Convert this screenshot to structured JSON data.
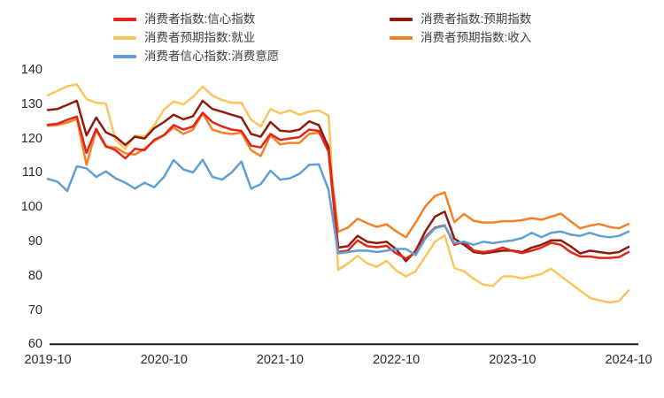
{
  "chart_data": {
    "type": "line",
    "title": "",
    "start_month": "2019-10",
    "end_month": "2024-10",
    "x_tick_labels": [
      "2019-10",
      "2020-10",
      "2021-10",
      "2022-10",
      "2023-10",
      "2024-10"
    ],
    "months_per_x_tick": 12,
    "y_ticks": [
      140,
      130,
      120,
      110,
      100,
      90,
      80,
      70,
      60
    ],
    "ylim": [
      60,
      140
    ],
    "grid": false,
    "legend_position": "top",
    "axis_color": "#1a1a1a",
    "series": [
      {
        "name": "消费者指数:信心指数",
        "color": "#e2261a",
        "values": [
          124.0,
          124.3,
          125.4,
          126.4,
          115.8,
          122.8,
          117.8,
          116.6,
          114.2,
          117.0,
          116.6,
          119.6,
          121.0,
          123.9,
          122.6,
          123.5,
          127.5,
          124.8,
          123.5,
          122.6,
          122.2,
          117.9,
          117.4,
          121.3,
          119.6,
          120.0,
          120.4,
          122.6,
          122.2,
          116.1,
          86.9,
          87.3,
          90.3,
          88.6,
          88.3,
          88.7,
          86.5,
          85.0,
          86.8,
          91.2,
          94.0,
          94.7,
          89.0,
          89.9,
          87.3,
          86.9,
          87.3,
          88.2,
          87.2,
          86.6,
          87.3,
          88.2,
          89.6,
          89.0,
          86.9,
          85.6,
          85.6,
          85.2,
          85.2,
          85.4,
          86.9
        ]
      },
      {
        "name": "消费者指数:预期指数",
        "color": "#8e1c0d",
        "values": [
          128.3,
          128.6,
          129.8,
          131.0,
          120.9,
          126.1,
          121.8,
          120.5,
          118.1,
          120.5,
          120.0,
          123.0,
          124.8,
          126.9,
          125.6,
          126.5,
          131.0,
          128.6,
          127.8,
          126.9,
          126.1,
          121.3,
          120.5,
          124.8,
          122.3,
          122.0,
          122.6,
          125.0,
          123.9,
          117.4,
          88.2,
          88.6,
          91.6,
          89.9,
          89.5,
          89.9,
          87.7,
          84.2,
          87.3,
          92.9,
          97.2,
          98.7,
          90.8,
          89.0,
          86.9,
          86.5,
          86.9,
          87.3,
          87.3,
          86.9,
          88.2,
          89.0,
          90.3,
          90.3,
          88.6,
          86.5,
          87.3,
          86.9,
          86.5,
          86.9,
          88.4
        ]
      },
      {
        "name": "消费者预期指数:就业",
        "color": "#fcc45c",
        "values": [
          132.6,
          133.9,
          135.2,
          135.8,
          131.5,
          130.4,
          130.2,
          119.6,
          117.0,
          120.9,
          120.5,
          123.9,
          128.4,
          130.8,
          129.9,
          132.1,
          135.1,
          132.5,
          131.2,
          130.4,
          130.4,
          125.5,
          123.5,
          128.6,
          127.3,
          128.2,
          126.9,
          127.8,
          128.2,
          126.7,
          81.7,
          83.5,
          85.8,
          83.6,
          82.6,
          84.3,
          81.5,
          79.8,
          81.3,
          85.6,
          89.9,
          91.8,
          82.2,
          81.3,
          79.1,
          77.4,
          77.0,
          79.8,
          79.8,
          79.2,
          79.8,
          80.5,
          82.1,
          79.8,
          77.8,
          75.7,
          73.5,
          72.8,
          72.2,
          72.6,
          75.7
        ]
      },
      {
        "name": "消费者预期指数:收入",
        "color": "#f68026",
        "values": [
          123.7,
          123.9,
          124.6,
          125.7,
          112.3,
          122.4,
          117.5,
          117.4,
          115.7,
          115.3,
          117.0,
          119.3,
          120.9,
          123.2,
          121.3,
          122.6,
          127.3,
          122.6,
          121.7,
          121.3,
          121.7,
          116.6,
          114.9,
          120.9,
          118.3,
          118.7,
          118.7,
          121.3,
          121.7,
          117.9,
          92.8,
          94.0,
          96.6,
          95.3,
          94.2,
          95.0,
          92.9,
          91.2,
          95.5,
          100.2,
          103.2,
          104.3,
          95.6,
          98.0,
          96.0,
          95.5,
          95.5,
          95.9,
          95.9,
          96.2,
          96.8,
          96.3,
          97.2,
          98.1,
          95.9,
          93.8,
          94.6,
          95.1,
          94.2,
          93.8,
          95.1
        ]
      },
      {
        "name": "消费者信心指数:消费意愿",
        "color": "#5f9fd6",
        "values": [
          108.2,
          107.4,
          104.7,
          111.9,
          111.3,
          108.8,
          110.4,
          108.4,
          107.1,
          105.4,
          107.1,
          105.8,
          108.8,
          113.7,
          111.0,
          110.1,
          113.8,
          108.8,
          108.0,
          110.1,
          113.3,
          105.4,
          106.7,
          110.6,
          108.0,
          108.4,
          109.7,
          112.3,
          112.5,
          105.0,
          86.5,
          86.9,
          87.3,
          87.3,
          86.9,
          87.3,
          87.8,
          87.8,
          86.0,
          90.8,
          93.8,
          94.6,
          89.5,
          89.9,
          89.0,
          89.9,
          89.5,
          89.9,
          90.3,
          91.0,
          92.5,
          91.2,
          92.5,
          92.9,
          92.0,
          91.6,
          92.5,
          91.6,
          91.2,
          91.6,
          92.9
        ]
      }
    ]
  }
}
